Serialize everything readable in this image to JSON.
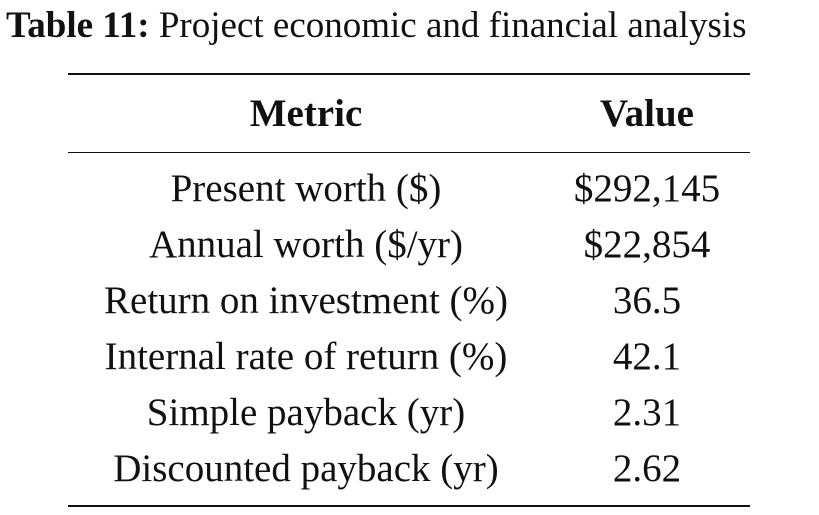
{
  "caption": {
    "label": "Table 11:",
    "text": "Project economic and financial analysis"
  },
  "table": {
    "headers": [
      "Metric",
      "Value"
    ],
    "rows": [
      {
        "metric": "Present worth ($)",
        "value": "$292,145"
      },
      {
        "metric": "Annual worth ($/yr)",
        "value": "$22,854"
      },
      {
        "metric": "Return on investment (%)",
        "value": "36.5"
      },
      {
        "metric": "Internal rate of return (%)",
        "value": "42.1"
      },
      {
        "metric": "Simple payback (yr)",
        "value": "2.31"
      },
      {
        "metric": "Discounted payback (yr)",
        "value": "2.62"
      }
    ]
  }
}
